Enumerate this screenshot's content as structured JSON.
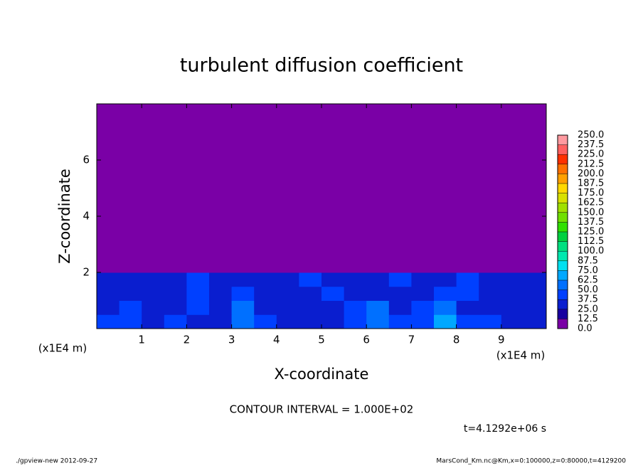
{
  "chart_data": {
    "type": "contour",
    "title": "turbulent diffusion coefficient",
    "xlabel": "X-coordinate",
    "ylabel": "Z-coordinate",
    "x_unit": "(x1E4 m)",
    "xlim": [
      0,
      10
    ],
    "xticks": [
      1,
      2,
      3,
      4,
      5,
      6,
      7,
      8,
      9
    ],
    "ylim": [
      0,
      8
    ],
    "yticks": [
      2,
      4,
      6
    ],
    "x_edges": [
      0,
      0.5,
      1,
      1.5,
      2,
      2.5,
      3,
      3.5,
      4,
      4.5,
      5,
      5.5,
      6,
      6.5,
      7,
      7.5,
      8,
      8.5,
      9,
      9.5,
      10
    ],
    "z_edges": [
      0,
      0.5,
      1,
      1.5,
      2,
      8
    ],
    "values": [
      [
        40,
        45,
        35,
        40,
        35,
        30,
        55,
        40,
        30,
        30,
        35,
        40,
        55,
        40,
        45,
        70,
        40,
        45,
        35,
        30
      ],
      [
        30,
        40,
        35,
        30,
        45,
        30,
        50,
        35,
        30,
        25,
        35,
        45,
        50,
        30,
        40,
        55,
        35,
        30,
        35,
        30
      ],
      [
        35,
        35,
        30,
        30,
        40,
        35,
        40,
        35,
        30,
        30,
        40,
        35,
        30,
        35,
        30,
        40,
        40,
        30,
        35,
        35
      ],
      [
        35,
        30,
        30,
        35,
        40,
        30,
        30,
        30,
        35,
        40,
        35,
        30,
        30,
        40,
        35,
        30,
        40,
        35,
        30,
        35
      ],
      [
        0,
        0,
        0,
        0,
        0,
        0,
        0,
        0,
        0,
        0,
        0,
        0,
        0,
        0,
        0,
        0,
        0,
        0,
        0,
        0
      ]
    ],
    "levels": [
      {
        "value": 0,
        "label": "0.0"
      },
      {
        "value": 12.5,
        "label": "12.5"
      },
      {
        "value": 25,
        "label": "25.0"
      },
      {
        "value": 37.5,
        "label": "37.5"
      },
      {
        "value": 50,
        "label": "50.0"
      },
      {
        "value": 62.5,
        "label": "62.5"
      },
      {
        "value": 75,
        "label": "75.0"
      },
      {
        "value": 87.5,
        "label": "87.5"
      },
      {
        "value": 100,
        "label": "100.0"
      },
      {
        "value": 112.5,
        "label": "112.5"
      },
      {
        "value": 125,
        "label": "125.0"
      },
      {
        "value": 137.5,
        "label": "137.5"
      },
      {
        "value": 150,
        "label": "150.0"
      },
      {
        "value": 162.5,
        "label": "162.5"
      },
      {
        "value": 175,
        "label": "175.0"
      },
      {
        "value": 187.5,
        "label": "187.5"
      },
      {
        "value": 200,
        "label": "200.0"
      },
      {
        "value": 212.5,
        "label": "212.5"
      },
      {
        "value": 225,
        "label": "225.0"
      },
      {
        "value": 237.5,
        "label": "237.5"
      },
      {
        "value": 250,
        "label": "250.0"
      }
    ],
    "colors": [
      "#7a00a6",
      "#1800a0",
      "#0a1ecf",
      "#0040ff",
      "#0070ff",
      "#00a8ff",
      "#00e0f0",
      "#00e8b0",
      "#00e080",
      "#00d040",
      "#30e000",
      "#70e000",
      "#a0e000",
      "#d8e000",
      "#ffd800",
      "#ffa000",
      "#ff7000",
      "#ff3000",
      "#ff6060",
      "#ff9aa0"
    ],
    "annotations": [
      "CONTOUR INTERVAL = 1.000E+02",
      "t=4.1292e+06 s"
    ],
    "footer_left": "./gpview-new  2012-09-27",
    "footer_right": "MarsCond_Km.nc@Km,x=0:100000,z=0:80000,t=4129200"
  }
}
